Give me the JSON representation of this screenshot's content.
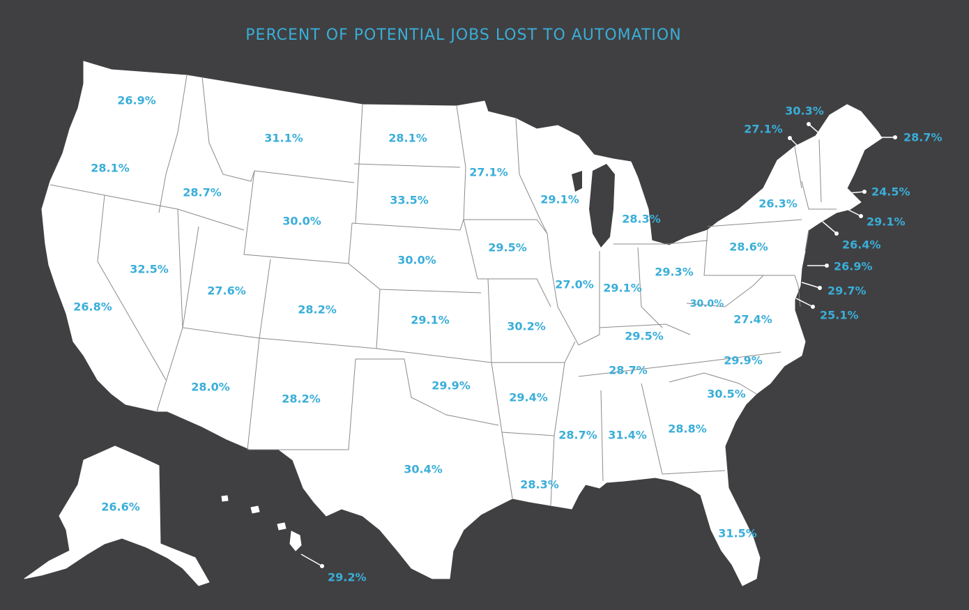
{
  "title": "PERCENT OF POTENTIAL JOBS LOST TO AUTOMATION",
  "colors": {
    "background": "#404042",
    "land": "#ffffff",
    "label": "#3aaed8",
    "border": "#8a8a8a"
  },
  "states": {
    "WA": "26.9%",
    "OR": "28.1%",
    "CA": "26.8%",
    "ID": "28.7%",
    "NV": "32.5%",
    "MT": "31.1%",
    "WY": "30.0%",
    "UT": "27.6%",
    "AZ": "28.0%",
    "CO": "28.2%",
    "NM": "28.2%",
    "ND": "28.1%",
    "SD": "33.5%",
    "NE": "30.0%",
    "KS": "29.1%",
    "OK": "29.9%",
    "TX": "30.4%",
    "MN": "27.1%",
    "IA": "29.5%",
    "MO": "30.2%",
    "AR": "29.4%",
    "LA": "28.3%",
    "WI": "29.1%",
    "IL": "27.0%",
    "MI": "28.3%",
    "IN": "29.1%",
    "OH": "29.3%",
    "KY": "29.5%",
    "TN": "28.7%",
    "MS": "28.7%",
    "AL": "31.4%",
    "GA": "28.8%",
    "FL": "31.5%",
    "SC": "30.5%",
    "NC": "29.9%",
    "VA": "27.4%",
    "WV": "30.0%",
    "PA": "28.6%",
    "NY": "26.3%",
    "ME": "28.7%",
    "NH": "30.3%",
    "VT": "27.1%",
    "MA": "24.5%",
    "RI": "29.1%",
    "CT": "26.4%",
    "NJ": "26.9%",
    "DE": "29.7%",
    "MD": "25.1%",
    "AK": "26.6%",
    "HI": "29.2%"
  }
}
